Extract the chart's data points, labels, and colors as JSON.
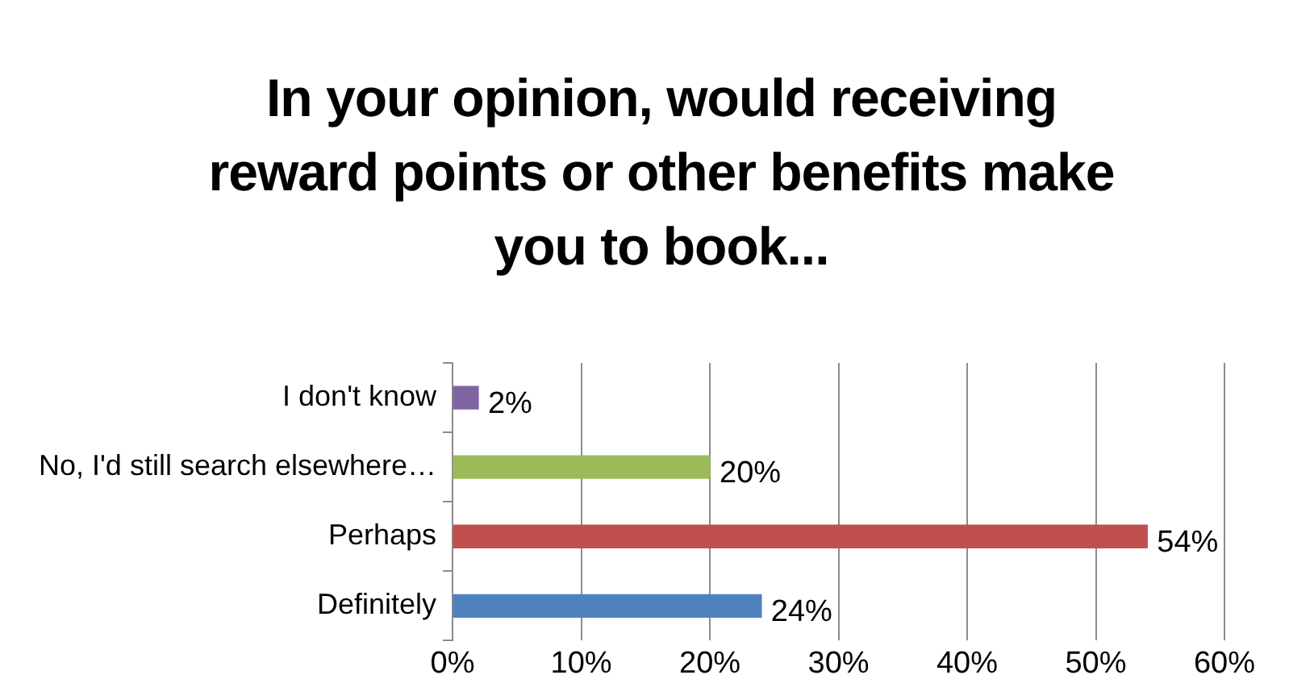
{
  "chart_data": {
    "type": "bar",
    "orientation": "horizontal",
    "title": "In your opinion, would receiving reward points or other benefits make you to book...",
    "categories": [
      "I don't know",
      "No, I'd still search elsewhere…",
      "Perhaps",
      "Definitely"
    ],
    "values": [
      2,
      20,
      54,
      24
    ],
    "colors": [
      "#8064a2",
      "#9bbb59",
      "#c0504d",
      "#4f81bd"
    ],
    "value_labels": [
      "2%",
      "20%",
      "54%",
      "24%"
    ],
    "xlim": [
      0,
      60
    ],
    "xticks": [
      {
        "value": 0,
        "label": "0%"
      },
      {
        "value": 10,
        "label": "10%"
      },
      {
        "value": 20,
        "label": "20%"
      },
      {
        "value": 30,
        "label": "30%"
      },
      {
        "value": 40,
        "label": "40%"
      },
      {
        "value": 50,
        "label": "50%"
      },
      {
        "value": 60,
        "label": "60%"
      }
    ],
    "grid": "x",
    "legend": false
  }
}
